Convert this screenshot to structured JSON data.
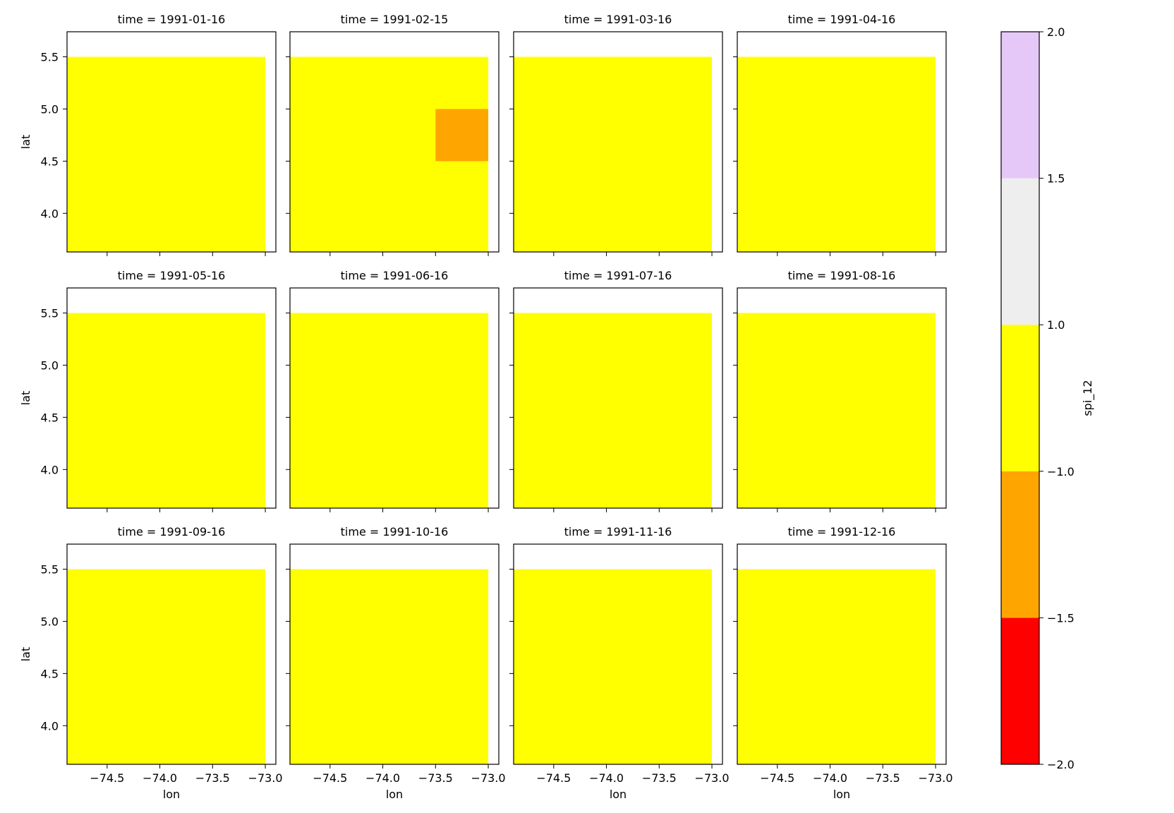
{
  "chart_data": {
    "type": "heatmap",
    "facet_label": "time",
    "panels": [
      {
        "title": "time = 1991-01-16",
        "cells": []
      },
      {
        "title": "time = 1991-02-15",
        "cells": [
          {
            "lon": [
              -73.5,
              -73.0
            ],
            "lat": [
              4.5,
              5.0
            ],
            "category": 1
          }
        ]
      },
      {
        "title": "time = 1991-03-16",
        "cells": []
      },
      {
        "title": "time = 1991-04-16",
        "cells": []
      },
      {
        "title": "time = 1991-05-16",
        "cells": []
      },
      {
        "title": "time = 1991-06-16",
        "cells": []
      },
      {
        "title": "time = 1991-07-16",
        "cells": []
      },
      {
        "title": "time = 1991-08-16",
        "cells": []
      },
      {
        "title": "time = 1991-09-16",
        "cells": []
      },
      {
        "title": "time = 1991-10-16",
        "cells": []
      },
      {
        "title": "time = 1991-11-16",
        "cells": []
      },
      {
        "title": "time = 1991-12-16",
        "cells": []
      }
    ],
    "background_category": 2,
    "data_extent": {
      "lon": [
        -75.0,
        -73.0
      ],
      "lat": [
        3.5,
        5.5
      ]
    },
    "xlim": [
      -74.88,
      -72.9
    ],
    "ylim": [
      3.63,
      5.74
    ],
    "xlabel": "lon",
    "ylabel": "lat",
    "xticks": [
      -74.5,
      -74.0,
      -73.5,
      -73.0
    ],
    "xtick_labels": [
      "−74.5",
      "−74.0",
      "−73.5",
      "−73.0"
    ],
    "yticks": [
      4.0,
      4.5,
      5.0,
      5.5
    ],
    "ytick_labels": [
      "4.0",
      "4.5",
      "5.0",
      "5.5"
    ],
    "colorbar": {
      "label": "spi_12",
      "levels": [
        -2.0,
        -1.5,
        -1.0,
        1.0,
        1.5,
        2.0
      ],
      "level_labels": [
        "−2.0",
        "−1.5",
        "−1.0",
        "1.0",
        "1.5",
        "2.0"
      ],
      "colors": [
        "#ff0000",
        "#ffa500",
        "#ffff00",
        "#eeeeee",
        "#e6c8f8"
      ]
    }
  }
}
